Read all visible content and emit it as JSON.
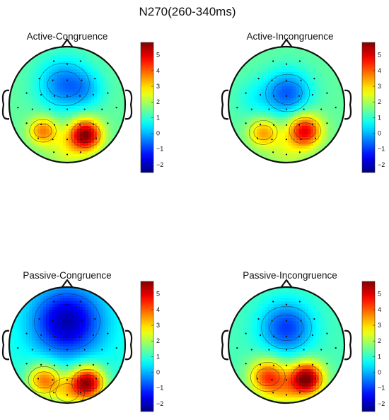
{
  "chart_data": {
    "type": "heatmap",
    "title": "N270(260-340ms)",
    "colorbar": {
      "min": -2.5,
      "max": 5.8,
      "ticks": [
        -2,
        -1,
        0,
        1,
        2,
        3,
        4,
        5
      ],
      "tick_labels": [
        "−2",
        "−1",
        "0",
        "1",
        "2",
        "3",
        "4",
        "5"
      ],
      "colormap": "jet"
    },
    "panels": [
      {
        "title": "Active-Congruence",
        "baseline": 1.4,
        "blobs": [
          {
            "x": -0.05,
            "y": -0.35,
            "amp": -1.9,
            "sigma": 0.32
          },
          {
            "x": 0.35,
            "y": -0.25,
            "amp": -0.8,
            "sigma": 0.22
          },
          {
            "x": 0.32,
            "y": 0.52,
            "amp": 4.2,
            "sigma": 0.19
          },
          {
            "x": -0.42,
            "y": 0.45,
            "amp": 2.3,
            "sigma": 0.17
          },
          {
            "x": 0.0,
            "y": 0.75,
            "amp": 1.0,
            "sigma": 0.25
          }
        ]
      },
      {
        "title": "Active-Incongruence",
        "baseline": 1.4,
        "blobs": [
          {
            "x": 0.02,
            "y": -0.2,
            "amp": -2.1,
            "sigma": 0.28
          },
          {
            "x": -0.55,
            "y": -0.1,
            "amp": -0.6,
            "sigma": 0.25
          },
          {
            "x": 0.32,
            "y": 0.45,
            "amp": 3.5,
            "sigma": 0.2
          },
          {
            "x": -0.4,
            "y": 0.48,
            "amp": 2.0,
            "sigma": 0.18
          },
          {
            "x": 0.0,
            "y": 0.78,
            "amp": 0.8,
            "sigma": 0.25
          }
        ]
      },
      {
        "title": "Passive-Congruence",
        "baseline": 0.9,
        "blobs": [
          {
            "x": 0.0,
            "y": -0.4,
            "amp": -3.0,
            "sigma": 0.42
          },
          {
            "x": 0.35,
            "y": 0.65,
            "amp": 4.6,
            "sigma": 0.2
          },
          {
            "x": -0.4,
            "y": 0.6,
            "amp": 2.8,
            "sigma": 0.2
          },
          {
            "x": 0.0,
            "y": 0.82,
            "amp": 1.5,
            "sigma": 0.22
          }
        ]
      },
      {
        "title": "Passive-Incongruence",
        "baseline": 1.2,
        "blobs": [
          {
            "x": 0.0,
            "y": -0.3,
            "amp": -2.2,
            "sigma": 0.32
          },
          {
            "x": 0.35,
            "y": 0.58,
            "amp": 4.6,
            "sigma": 0.2
          },
          {
            "x": -0.32,
            "y": 0.55,
            "amp": 3.0,
            "sigma": 0.22
          },
          {
            "x": 0.0,
            "y": 0.8,
            "amp": 1.3,
            "sigma": 0.22
          }
        ]
      }
    ],
    "electrodes": [
      [
        -0.23,
        -0.75
      ],
      [
        0.23,
        -0.75
      ],
      [
        0,
        -0.7
      ],
      [
        -0.48,
        -0.45
      ],
      [
        -0.25,
        -0.42
      ],
      [
        0,
        -0.42
      ],
      [
        0.25,
        -0.42
      ],
      [
        0.48,
        -0.45
      ],
      [
        -0.7,
        -0.2
      ],
      [
        -0.45,
        -0.17
      ],
      [
        -0.22,
        -0.15
      ],
      [
        0,
        -0.15
      ],
      [
        0.22,
        -0.15
      ],
      [
        0.45,
        -0.17
      ],
      [
        0.7,
        -0.2
      ],
      [
        -0.85,
        0.05
      ],
      [
        -0.6,
        0.08
      ],
      [
        -0.3,
        0.08
      ],
      [
        0,
        0.08
      ],
      [
        0.3,
        0.08
      ],
      [
        0.6,
        0.08
      ],
      [
        0.85,
        0.05
      ],
      [
        -0.7,
        0.32
      ],
      [
        -0.45,
        0.34
      ],
      [
        -0.22,
        0.35
      ],
      [
        0,
        0.35
      ],
      [
        0.22,
        0.35
      ],
      [
        0.45,
        0.34
      ],
      [
        0.7,
        0.32
      ],
      [
        -0.5,
        0.58
      ],
      [
        -0.25,
        0.6
      ],
      [
        0,
        0.6
      ],
      [
        0.25,
        0.6
      ],
      [
        0.5,
        0.58
      ],
      [
        -0.23,
        0.82
      ],
      [
        0,
        0.86
      ],
      [
        0.23,
        0.82
      ]
    ]
  }
}
